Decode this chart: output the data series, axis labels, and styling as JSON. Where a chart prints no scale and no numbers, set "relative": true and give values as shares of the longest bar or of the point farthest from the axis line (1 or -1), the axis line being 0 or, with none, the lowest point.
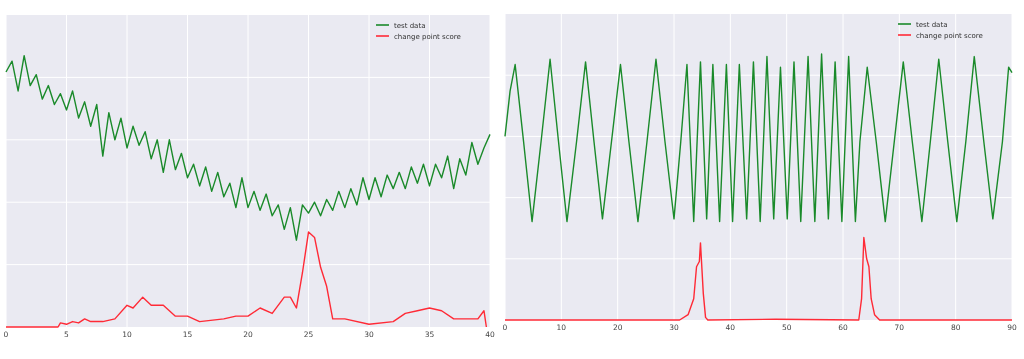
{
  "chart_data": [
    {
      "type": "line",
      "relative": true,
      "xlim": [
        0,
        40
      ],
      "xticks": [
        0,
        5,
        10,
        15,
        20,
        25,
        30,
        35,
        40
      ],
      "tick_labels": "x",
      "grid": true,
      "legend": "top right",
      "series": [
        {
          "name": "test data",
          "color": "#1a8a2a",
          "x": [
            0,
            0.5,
            1,
            1.5,
            2,
            2.5,
            3,
            3.5,
            4,
            4.5,
            5,
            5.5,
            6,
            6.5,
            7,
            7.5,
            8,
            8.5,
            9,
            9.5,
            10,
            10.5,
            11,
            11.5,
            12,
            12.5,
            13,
            13.5,
            14,
            14.5,
            15,
            15.5,
            16,
            16.5,
            17,
            17.5,
            18,
            18.5,
            19,
            19.5,
            20,
            20.5,
            21,
            21.5,
            22,
            22.5,
            23,
            23.5,
            24,
            24.5,
            25,
            25.5,
            26,
            26.5,
            27,
            27.5,
            28,
            28.5,
            29,
            29.5,
            30,
            30.5,
            31,
            31.5,
            32,
            32.5,
            33,
            33.5,
            34,
            34.5,
            35,
            35.5,
            36,
            36.5,
            37,
            37.5,
            38,
            38.5,
            39,
            39.5,
            40
          ],
          "values": [
            0.94,
            0.98,
            0.87,
            1.0,
            0.89,
            0.93,
            0.84,
            0.89,
            0.82,
            0.86,
            0.8,
            0.87,
            0.77,
            0.83,
            0.74,
            0.82,
            0.63,
            0.79,
            0.69,
            0.77,
            0.66,
            0.74,
            0.67,
            0.72,
            0.62,
            0.69,
            0.57,
            0.69,
            0.58,
            0.64,
            0.55,
            0.6,
            0.52,
            0.59,
            0.5,
            0.57,
            0.48,
            0.53,
            0.44,
            0.55,
            0.44,
            0.5,
            0.43,
            0.49,
            0.41,
            0.45,
            0.36,
            0.44,
            0.32,
            0.45,
            0.42,
            0.46,
            0.41,
            0.47,
            0.43,
            0.5,
            0.44,
            0.51,
            0.45,
            0.55,
            0.47,
            0.55,
            0.48,
            0.56,
            0.51,
            0.57,
            0.51,
            0.59,
            0.53,
            0.6,
            0.52,
            0.6,
            0.55,
            0.63,
            0.51,
            0.62,
            0.56,
            0.68,
            0.6,
            0.66,
            0.71
          ]
        },
        {
          "name": "change point score",
          "color": "#ff2a36",
          "x": [
            0,
            4.3,
            4.5,
            5,
            5.5,
            6,
            6.5,
            7,
            8,
            9,
            10,
            10.5,
            11.3,
            12,
            13,
            14,
            15,
            16,
            18,
            19,
            20,
            21,
            22,
            23,
            23.5,
            24,
            24.5,
            25,
            25.5,
            26,
            26.5,
            27,
            28,
            30,
            32,
            33,
            34,
            35,
            36,
            37,
            38,
            39,
            39.5,
            39.7
          ],
          "values": [
            0,
            0,
            0.015,
            0.01,
            0.02,
            0.015,
            0.03,
            0.02,
            0.02,
            0.03,
            0.08,
            0.07,
            0.11,
            0.08,
            0.08,
            0.04,
            0.04,
            0.02,
            0.03,
            0.04,
            0.04,
            0.07,
            0.05,
            0.11,
            0.11,
            0.07,
            0.2,
            0.35,
            0.33,
            0.22,
            0.15,
            0.03,
            0.03,
            0.01,
            0.02,
            0.05,
            0.06,
            0.07,
            0.06,
            0.03,
            0.03,
            0.03,
            0.06,
            0
          ]
        }
      ]
    },
    {
      "type": "line",
      "relative": true,
      "xlim": [
        0,
        90
      ],
      "xticks": [
        0,
        10,
        20,
        30,
        40,
        50,
        60,
        70,
        80,
        90
      ],
      "tick_labels": "x",
      "grid": true,
      "legend": "top right",
      "series": [
        {
          "name": "test data",
          "color": "#1a8a2a",
          "x": [
            0,
            0.9,
            1.8,
            3.3,
            4.8,
            6.4,
            8,
            9.5,
            11,
            12.7,
            14.3,
            15.8,
            17.3,
            18.9,
            20.5,
            22,
            23.6,
            25.2,
            26.8,
            28.4,
            30,
            31.2,
            32.3,
            33.5,
            34.7,
            35.8,
            36.9,
            38.1,
            39.3,
            40.4,
            41.6,
            42.9,
            44.1,
            45.3,
            46.5,
            47.7,
            48.9,
            50.1,
            51.3,
            52.5,
            53.8,
            55,
            56.2,
            57.4,
            58.6,
            59.8,
            61,
            62.2,
            63,
            64.3,
            65.9,
            67.5,
            69.1,
            70.7,
            72.3,
            74,
            75.5,
            77,
            78.6,
            80.2,
            81.8,
            83.3,
            85,
            86.6,
            88.3,
            89.4,
            90
          ],
          "values": [
            0.69,
            0.86,
            0.96,
            0.67,
            0.37,
            0.67,
            0.98,
            0.67,
            0.37,
            0.67,
            0.97,
            0.67,
            0.38,
            0.67,
            0.96,
            0.67,
            0.37,
            0.67,
            0.98,
            0.67,
            0.38,
            0.67,
            0.96,
            0.37,
            0.97,
            0.38,
            0.96,
            0.37,
            0.96,
            0.37,
            0.96,
            0.38,
            0.97,
            0.37,
            0.99,
            0.38,
            0.95,
            0.38,
            0.97,
            0.37,
            0.99,
            0.37,
            1.0,
            0.38,
            0.97,
            0.37,
            0.99,
            0.37,
            0.67,
            0.95,
            0.67,
            0.37,
            0.67,
            0.97,
            0.67,
            0.37,
            0.67,
            0.98,
            0.67,
            0.37,
            0.67,
            0.99,
            0.67,
            0.38,
            0.67,
            0.95,
            0.93
          ]
        },
        {
          "name": "change point score",
          "color": "#ff2a36",
          "x": [
            0,
            31,
            32.5,
            33.5,
            34,
            34.5,
            34.7,
            35.2,
            35.6,
            36,
            48,
            62.8,
            63.3,
            63.7,
            64.2,
            64.6,
            65,
            65.6,
            66.5,
            90
          ],
          "values": [
            0,
            0,
            0.02,
            0.08,
            0.2,
            0.22,
            0.29,
            0.1,
            0.01,
            0,
            0.003,
            0,
            0.08,
            0.31,
            0.23,
            0.2,
            0.08,
            0.02,
            0,
            0
          ]
        }
      ]
    }
  ]
}
